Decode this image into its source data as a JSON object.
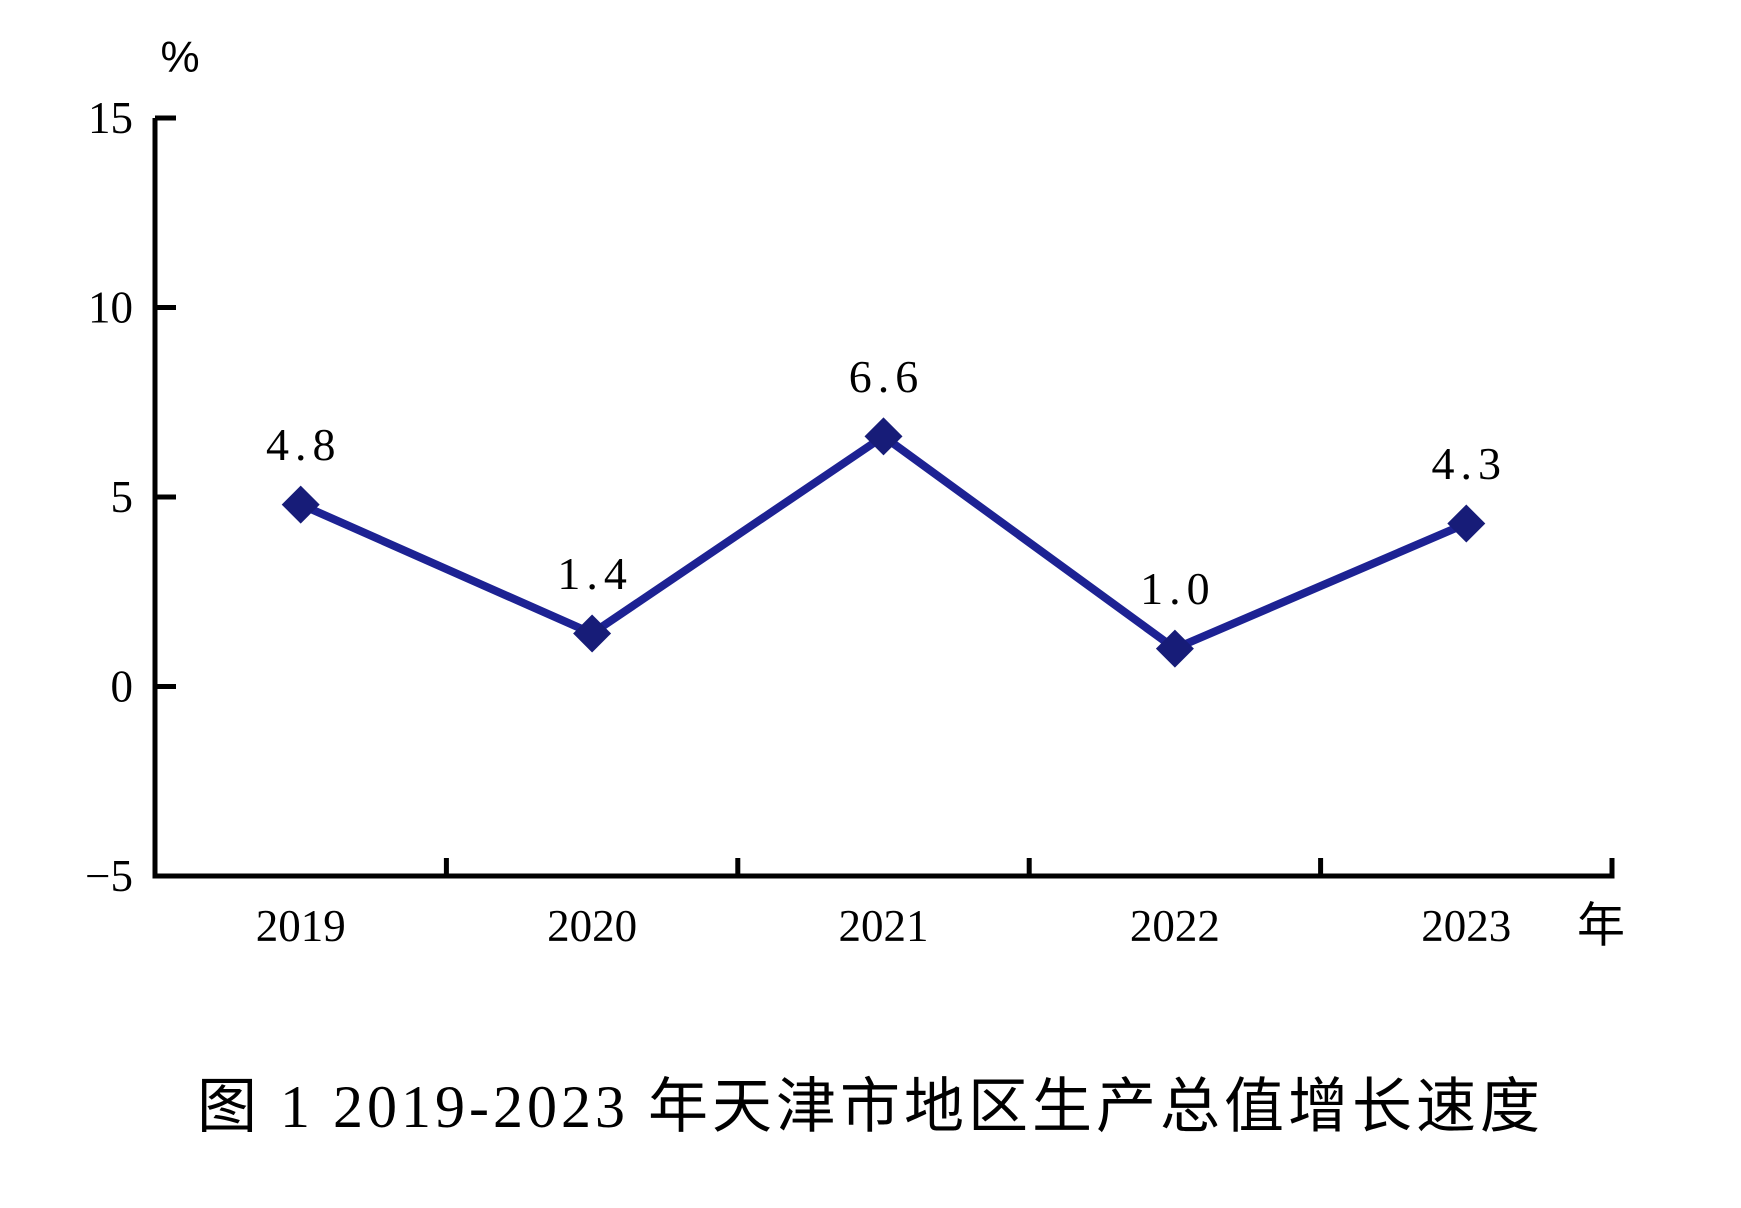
{
  "page": {
    "background": "#ffffff"
  },
  "chart_data": {
    "type": "line",
    "title": "图 1  2019-2023 年天津市地区生产总值增长速度",
    "unit_label": "%",
    "axis_suffix": "年",
    "categories": [
      "2019",
      "2020",
      "2021",
      "2022",
      "2023"
    ],
    "values": [
      4.8,
      1.4,
      6.6,
      1.0,
      4.3
    ],
    "data_labels": [
      "4.8",
      "1.4",
      "6.6",
      "1.0",
      "4.3"
    ],
    "y_ticks": [
      15,
      10,
      5,
      0,
      -5
    ],
    "ylim": [
      -5,
      15
    ],
    "grid": false,
    "legend": "none",
    "line_color": "#1d2293",
    "marker_color": "#171c78",
    "axis_color": "#000000",
    "text_color": "#000000"
  }
}
